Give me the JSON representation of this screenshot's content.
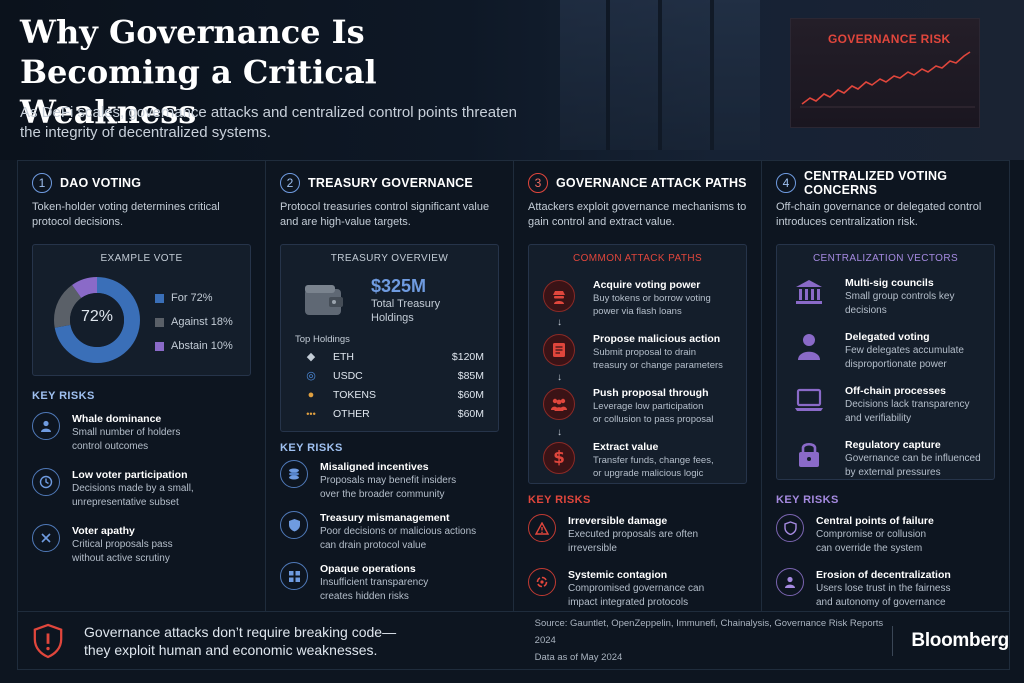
{
  "header": {
    "title_line1": "Why Governance Is",
    "title_line2": "Becoming a Critical Weakness",
    "subtitle": "As DeFi scales, governance attacks and centralized control points threaten the integrity of decentralized systems.",
    "hero_chart_label": "GOVERNANCE RISK"
  },
  "columns": [
    {
      "number": "1",
      "title": "DAO VOTING",
      "desc": "Token-holder voting determines critical protocol decisions.",
      "card_title": "EXAMPLE VOTE",
      "donut_center": "72%",
      "vote": [
        {
          "label": "For 72%",
          "value": 72,
          "color": "#3a6fb8"
        },
        {
          "label": "Against 18%",
          "value": 18,
          "color": "#5a6068"
        },
        {
          "label": "Abstain 10%",
          "value": 10,
          "color": "#8a6ac8"
        }
      ],
      "key_risks_label": "KEY RISKS",
      "risks": [
        {
          "title": "Whale dominance",
          "desc1": "Small number of holders",
          "desc2": "control outcomes",
          "icon": "person-icon"
        },
        {
          "title": "Low voter participation",
          "desc1": "Decisions made by a small,",
          "desc2": "unrepresentative subset",
          "icon": "clock-icon"
        },
        {
          "title": "Voter apathy",
          "desc1": "Critical proposals pass",
          "desc2": "without active scrutiny",
          "icon": "x-icon"
        }
      ]
    },
    {
      "number": "2",
      "title": "TREASURY GOVERNANCE",
      "desc": "Protocol treasuries control significant value and are high-value targets.",
      "card_title": "TREASURY OVERVIEW",
      "total_amount": "$325M",
      "total_label1": "Total Treasury",
      "total_label2": "Holdings",
      "holdings_title": "Top Holdings",
      "holdings": [
        {
          "name": "ETH",
          "value": "$120M",
          "icon": "eth-icon",
          "glyph": "◆",
          "color": "#c3ccd6"
        },
        {
          "name": "USDC",
          "value": "$85M",
          "icon": "usdc-icon",
          "glyph": "◎",
          "color": "#4f8fe0"
        },
        {
          "name": "TOKENS",
          "value": "$60M",
          "icon": "token-icon",
          "glyph": "●",
          "color": "#e0a040"
        },
        {
          "name": "OTHER",
          "value": "$60M",
          "icon": "dots-icon",
          "glyph": "•••",
          "color": "#e0a040"
        }
      ],
      "key_risks_label": "KEY RISKS",
      "risks": [
        {
          "title": "Misaligned incentives",
          "desc1": "Proposals may benefit insiders",
          "desc2": "over the broader community",
          "icon": "coins-icon"
        },
        {
          "title": "Treasury mismanagement",
          "desc1": "Poor decisions or malicious actions",
          "desc2": "can drain protocol value",
          "icon": "shield-icon"
        },
        {
          "title": "Opaque operations",
          "desc1": "Insufficient transparency",
          "desc2": "creates hidden risks",
          "icon": "grid-icon"
        }
      ]
    },
    {
      "number": "3",
      "title": "GOVERNANCE ATTACK PATHS",
      "desc": "Attackers exploit governance mechanisms to gain control and extract value.",
      "card_title": "COMMON ATTACK PATHS",
      "steps": [
        {
          "title": "Acquire voting power",
          "desc1": "Buy tokens or borrow voting",
          "desc2": "power via flash loans",
          "icon": "hacker-icon"
        },
        {
          "title": "Propose malicious action",
          "desc1": "Submit proposal to drain",
          "desc2": "treasury or change parameters",
          "icon": "document-icon"
        },
        {
          "title": "Push proposal through",
          "desc1": "Leverage low participation",
          "desc2": "or collusion to pass proposal",
          "icon": "group-icon"
        },
        {
          "title": "Extract value",
          "desc1": "Transfer funds, change fees,",
          "desc2": "or upgrade malicious logic",
          "icon": "dollar-icon"
        }
      ],
      "key_risks_label": "KEY RISKS",
      "risks": [
        {
          "title": "Irreversible damage",
          "desc1": "Executed proposals are often",
          "desc2": "irreversible",
          "icon": "warning-icon"
        },
        {
          "title": "Systemic contagion",
          "desc1": "Compromised governance can",
          "desc2": "impact integrated protocols",
          "icon": "contagion-icon"
        }
      ]
    },
    {
      "number": "4",
      "title": "CENTRALIZED VOTING CONCERNS",
      "desc": "Off-chain governance or delegated control introduces centralization risk.",
      "card_title": "CENTRALIZATION VECTORS",
      "vectors": [
        {
          "title": "Multi-sig councils",
          "desc1": "Small group controls key",
          "desc2": "decisions",
          "icon": "bank-icon"
        },
        {
          "title": "Delegated voting",
          "desc1": "Few delegates accumulate",
          "desc2": "disproportionate power",
          "icon": "user-icon"
        },
        {
          "title": "Off-chain processes",
          "desc1": "Decisions lack transparency",
          "desc2": "and verifiability",
          "icon": "laptop-icon"
        },
        {
          "title": "Regulatory capture",
          "desc1": "Governance can be influenced",
          "desc2": "by external pressures",
          "icon": "lock-icon"
        }
      ],
      "key_risks_label": "KEY RISKS",
      "risks": [
        {
          "title": "Central points of failure",
          "desc1": "Compromise or collusion",
          "desc2": "can override the system",
          "icon": "shield-icon"
        },
        {
          "title": "Erosion of decentralization",
          "desc1": "Users lose trust in the fairness",
          "desc2": "and autonomy of governance",
          "icon": "person-icon"
        }
      ]
    }
  ],
  "footer": {
    "line1": "Governance attacks don’t require breaking code—",
    "line2": "they exploit human and economic weaknesses.",
    "source1": "Source: Gauntlet, OpenZeppelin, Immunefi, Chainalysis, Governance Risk Reports 2024",
    "source2": "Data as of May 2024",
    "brand": "Bloomberg"
  }
}
